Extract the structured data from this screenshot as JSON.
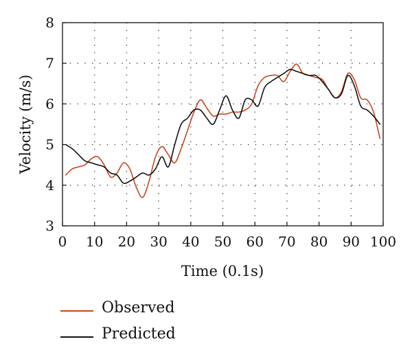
{
  "chart_data": {
    "type": "line",
    "title": "",
    "xlabel": "Time (0.1s)",
    "ylabel": "Velocity (m/s)",
    "xlim": [
      0,
      100
    ],
    "ylim": [
      3,
      8
    ],
    "xticks": [
      0,
      10,
      20,
      30,
      40,
      50,
      60,
      70,
      80,
      90,
      100
    ],
    "yticks": [
      3,
      4,
      5,
      6,
      7,
      8
    ],
    "grid": "dotted",
    "legend_position": "bottom-left",
    "series": [
      {
        "name": "Observed",
        "color": "#c8461e",
        "x": [
          1,
          3,
          5,
          7,
          9,
          11,
          13,
          15,
          17,
          19,
          21,
          23,
          25,
          27,
          29,
          31,
          33,
          35,
          37,
          39,
          41,
          43,
          45,
          47,
          49,
          51,
          53,
          55,
          57,
          59,
          61,
          63,
          65,
          67,
          69,
          71,
          73,
          75,
          77,
          79,
          81,
          83,
          85,
          87,
          89,
          91,
          93,
          95,
          97,
          99
        ],
        "y": [
          4.25,
          4.4,
          4.45,
          4.5,
          4.65,
          4.7,
          4.5,
          4.2,
          4.3,
          4.55,
          4.4,
          3.95,
          3.7,
          4.1,
          4.7,
          4.95,
          4.75,
          4.55,
          4.9,
          5.35,
          5.8,
          6.1,
          5.9,
          5.7,
          5.75,
          5.75,
          5.8,
          5.8,
          5.85,
          6.0,
          6.45,
          6.65,
          6.7,
          6.7,
          6.55,
          6.8,
          6.98,
          6.75,
          6.7,
          6.65,
          6.6,
          6.35,
          6.15,
          6.3,
          6.75,
          6.6,
          6.15,
          6.1,
          5.8,
          5.15
        ]
      },
      {
        "name": "Predicted",
        "color": "#111111",
        "x": [
          1,
          3,
          5,
          7,
          9,
          11,
          13,
          15,
          17,
          19,
          21,
          23,
          25,
          27,
          29,
          31,
          33,
          35,
          37,
          39,
          41,
          43,
          45,
          47,
          49,
          51,
          53,
          55,
          57,
          59,
          61,
          63,
          65,
          67,
          69,
          71,
          73,
          75,
          77,
          79,
          81,
          83,
          85,
          87,
          89,
          91,
          93,
          95,
          97,
          99
        ],
        "y": [
          5.0,
          4.9,
          4.75,
          4.6,
          4.55,
          4.5,
          4.45,
          4.3,
          4.25,
          4.05,
          4.1,
          4.2,
          4.3,
          4.25,
          4.4,
          4.7,
          4.45,
          5.0,
          5.5,
          5.65,
          5.85,
          5.85,
          5.65,
          5.5,
          5.85,
          6.2,
          5.85,
          5.65,
          6.1,
          6.1,
          5.95,
          6.4,
          6.55,
          6.65,
          6.75,
          6.85,
          6.8,
          6.75,
          6.7,
          6.7,
          6.55,
          6.35,
          6.15,
          6.25,
          6.7,
          6.45,
          5.95,
          5.85,
          5.7,
          5.5
        ]
      }
    ]
  }
}
